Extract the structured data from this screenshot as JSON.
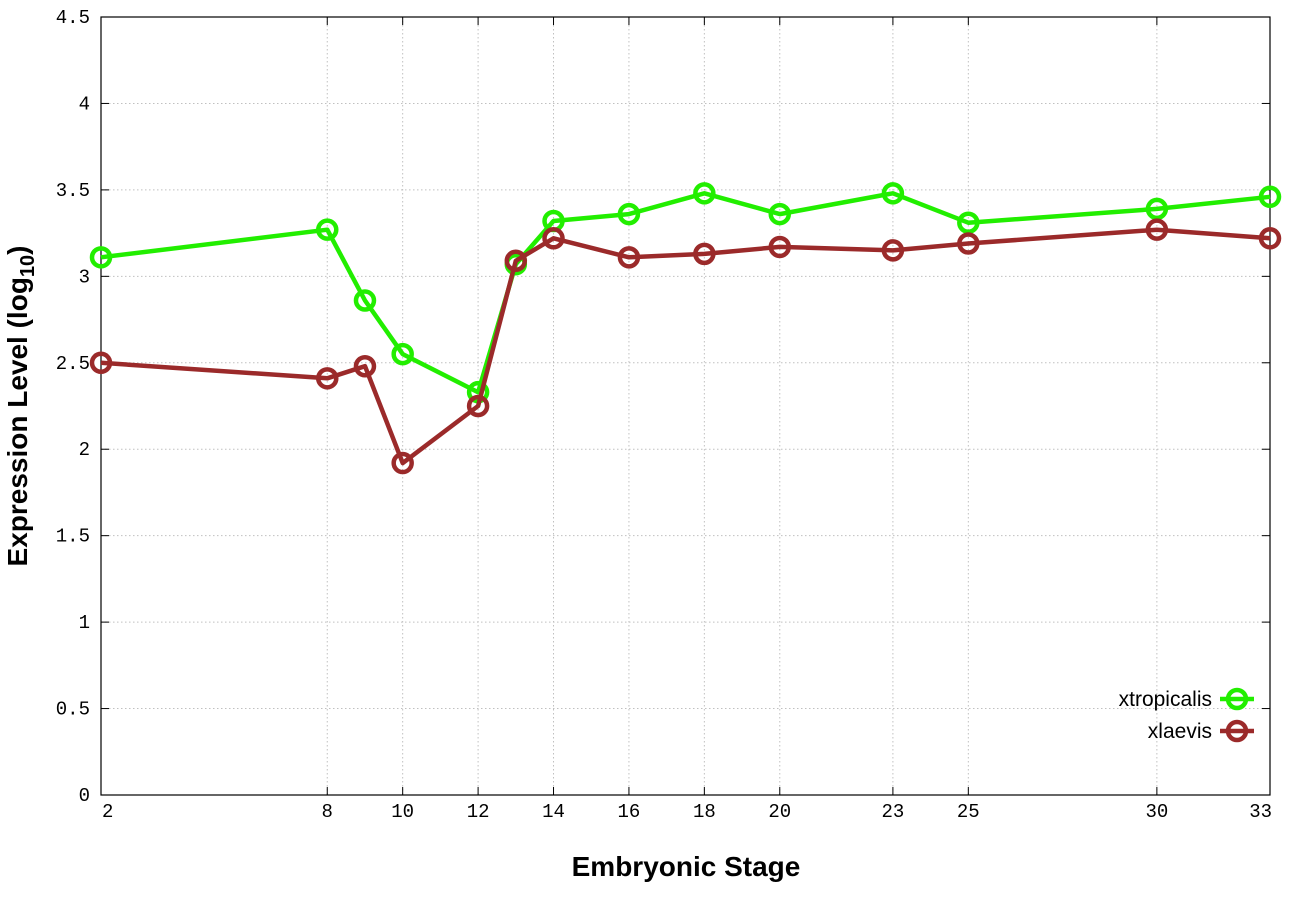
{
  "chart_data": {
    "type": "line",
    "xlabel": "Embryonic Stage",
    "ylabel_main": "Expression Level (log",
    "ylabel_sub": "10",
    "ylabel_close": ")",
    "ylim": [
      0,
      4.5
    ],
    "yticks": [
      {
        "value": 0,
        "label": "0"
      },
      {
        "value": 0.5,
        "label": "0.5"
      },
      {
        "value": 1,
        "label": "1"
      },
      {
        "value": 1.5,
        "label": "1.5"
      },
      {
        "value": 2,
        "label": "2"
      },
      {
        "value": 2.5,
        "label": "2.5"
      },
      {
        "value": 3,
        "label": "3"
      },
      {
        "value": 3.5,
        "label": "3.5"
      },
      {
        "value": 4,
        "label": "4"
      },
      {
        "value": 4.5,
        "label": "4.5"
      }
    ],
    "x": [
      "2",
      "8",
      "9",
      "10",
      "12",
      "13",
      "14",
      "16",
      "18",
      "20",
      "23",
      "25",
      "30",
      "33"
    ],
    "xticks": [
      "2",
      "8",
      "10",
      "12",
      "14",
      "16",
      "18",
      "20",
      "23",
      "25",
      "30",
      "33"
    ],
    "grid": true,
    "legend_position": "bottom-right",
    "series": [
      {
        "name": "xtropicalis",
        "color": "#22ee00",
        "values": [
          3.11,
          3.27,
          2.86,
          2.55,
          2.33,
          3.07,
          3.32,
          3.36,
          3.48,
          3.36,
          3.48,
          3.31,
          3.39,
          3.46
        ]
      },
      {
        "name": "xlaevis",
        "color": "#9b2a2a",
        "values": [
          2.5,
          2.41,
          2.48,
          1.92,
          2.25,
          3.09,
          3.22,
          3.11,
          3.13,
          3.17,
          3.15,
          3.19,
          3.27,
          3.22
        ]
      }
    ]
  }
}
